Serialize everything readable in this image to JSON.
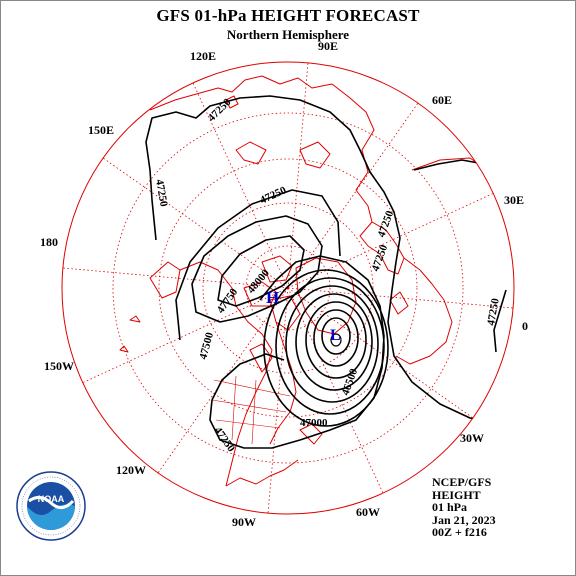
{
  "header": {
    "title": "GFS 01-hPa HEIGHT FORECAST",
    "subtitle": "Northern Hemisphere"
  },
  "map": {
    "longitude_labels": [
      "90E",
      "60E",
      "30E",
      "0",
      "30W",
      "60W",
      "90W",
      "120W",
      "150W",
      "180",
      "150E",
      "120E"
    ],
    "contours": [
      {
        "label": "47250",
        "value": 47250
      },
      {
        "label": "47250",
        "value": 47250
      },
      {
        "label": "47250",
        "value": 47250
      },
      {
        "label": "47250",
        "value": 47250
      },
      {
        "label": "47250",
        "value": 47250
      },
      {
        "label": "47250",
        "value": 47250
      },
      {
        "label": "47250",
        "value": 47250
      },
      {
        "label": "48000",
        "value": 48000
      },
      {
        "label": "47750",
        "value": 47750
      },
      {
        "label": "47500",
        "value": 47500
      },
      {
        "label": "47000",
        "value": 47000
      },
      {
        "label": "46500",
        "value": 46500
      }
    ],
    "high_marker": "H",
    "low_marker": "L",
    "colors": {
      "geography": "#e00000",
      "contours": "#000000",
      "markers": "#0000cc"
    }
  },
  "logo": {
    "text": "NOAA",
    "icon": "noaa-logo-icon"
  },
  "info": {
    "model": "NCEP/GFS",
    "field": "HEIGHT",
    "level": "01 hPa",
    "date": "Jan 21, 2023",
    "cycle": "00Z + f216"
  }
}
